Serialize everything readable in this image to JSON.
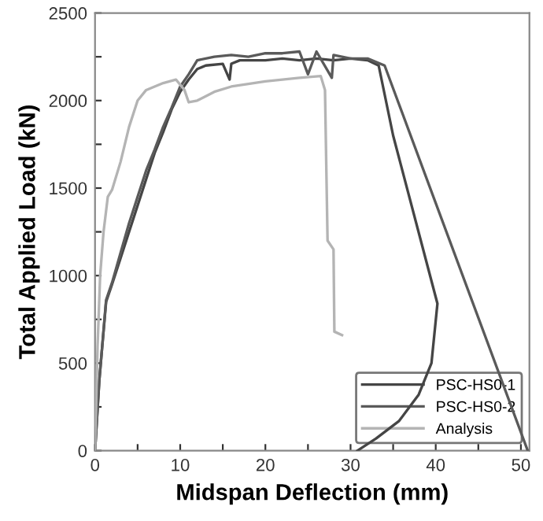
{
  "chart_data": {
    "type": "line",
    "xlabel": "Midspan Deflection (mm)",
    "ylabel": "Total Applied Load (kN)",
    "xlim": [
      0,
      51
    ],
    "ylim": [
      0,
      2500
    ],
    "xticks": [
      0,
      {
        "value": 5,
        "label": null
      },
      10,
      {
        "value": 15,
        "label": null
      },
      20,
      {
        "value": 25,
        "label": null
      },
      30,
      {
        "value": 35,
        "label": null
      },
      40,
      {
        "value": 45,
        "label": null
      },
      50
    ],
    "yticks": [
      0,
      {
        "value": 250,
        "label": null
      },
      500,
      {
        "value": 750,
        "label": null
      },
      1000,
      {
        "value": 1250,
        "label": null
      },
      1500,
      {
        "value": 1750,
        "label": null
      },
      2000,
      {
        "value": 2250,
        "label": null
      },
      2500
    ],
    "grid": false,
    "legend": "bottom right",
    "marker": "none",
    "line_style": "solid",
    "series": [
      {
        "name": "PSC-HS0-1",
        "color": "#454545",
        "x": [
          0,
          0.5,
          1.3,
          2,
          3,
          4,
          5,
          6,
          7,
          8,
          9,
          10,
          11,
          12,
          13,
          15,
          15.8,
          16,
          17,
          20,
          22,
          24,
          26,
          28,
          30,
          32,
          33.3,
          35,
          40.2,
          39.5,
          38,
          35.7,
          33,
          30.8
        ],
        "values": [
          0,
          400,
          850,
          950,
          1100,
          1250,
          1400,
          1550,
          1700,
          1820,
          1950,
          2050,
          2120,
          2180,
          2200,
          2210,
          2120,
          2210,
          2230,
          2230,
          2240,
          2230,
          2240,
          2230,
          2240,
          2230,
          2200,
          1800,
          840,
          500,
          320,
          170,
          70,
          0
        ]
      },
      {
        "name": "PSC-HS0-2",
        "color": "#5a5a5a",
        "x": [
          0,
          0.5,
          1.3,
          2,
          3,
          4,
          5,
          6,
          7,
          8,
          9,
          10,
          11,
          12,
          14,
          16,
          18,
          20,
          22,
          24,
          25,
          26,
          27.8,
          28,
          30,
          32,
          34,
          50.8
        ],
        "values": [
          0,
          400,
          860,
          960,
          1130,
          1300,
          1450,
          1600,
          1720,
          1850,
          1960,
          2080,
          2150,
          2230,
          2250,
          2260,
          2250,
          2270,
          2270,
          2280,
          2150,
          2280,
          2130,
          2260,
          2240,
          2240,
          2200,
          0
        ]
      },
      {
        "name": "Analysis",
        "color": "#b4b4b4",
        "x": [
          0,
          0.3,
          0.6,
          1,
          1.5,
          2,
          3,
          4,
          5,
          6,
          7,
          8,
          9.5,
          10.5,
          11,
          12,
          14,
          16,
          20,
          24,
          26.5,
          27,
          27.3,
          28,
          28.1,
          29
        ],
        "values": [
          0,
          600,
          1000,
          1250,
          1450,
          1490,
          1650,
          1850,
          2000,
          2060,
          2080,
          2100,
          2120,
          2060,
          1990,
          2000,
          2050,
          2080,
          2110,
          2130,
          2140,
          2060,
          1200,
          1150,
          680,
          660
        ]
      }
    ]
  }
}
